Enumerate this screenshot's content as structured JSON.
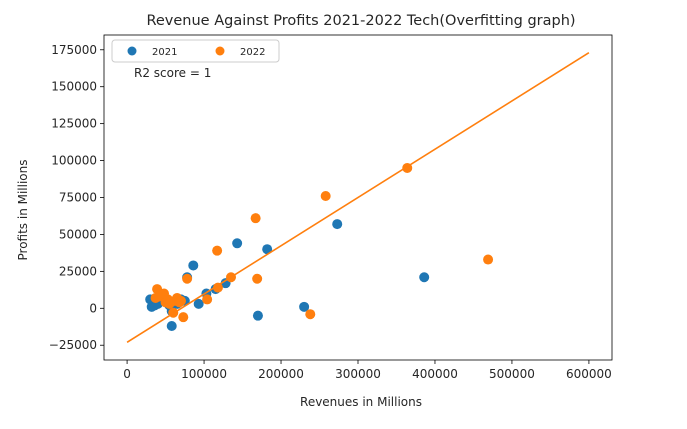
{
  "chart_data": {
    "type": "scatter",
    "title": "Revenue Against Profits 2021-2022 Tech(Overfitting graph)",
    "xlabel": "Revenues in Millions",
    "ylabel": "Profits in Millions",
    "xlim": [
      -30000,
      630000
    ],
    "ylim": [
      -35000,
      185000
    ],
    "xticks": [
      0,
      100000,
      200000,
      300000,
      400000,
      500000,
      600000
    ],
    "yticks": [
      -25000,
      0,
      25000,
      50000,
      75000,
      100000,
      125000,
      150000,
      175000
    ],
    "xtick_labels": [
      "0",
      "100000",
      "200000",
      "300000",
      "400000",
      "500000",
      "600000"
    ],
    "ytick_labels": [
      "−25000",
      "0",
      "25000",
      "50000",
      "75000",
      "100000",
      "125000",
      "150000",
      "175000"
    ],
    "grid": false,
    "legend_position": "top-left",
    "annotation": "R2 score = 1",
    "series": [
      {
        "name": "2021",
        "color": "#1f77b4",
        "points": [
          [
            30000,
            6000
          ],
          [
            32000,
            1000
          ],
          [
            36000,
            2000
          ],
          [
            40000,
            3000
          ],
          [
            45000,
            7000
          ],
          [
            50000,
            5000
          ],
          [
            55000,
            2000
          ],
          [
            58000,
            -2000
          ],
          [
            58000,
            -12000
          ],
          [
            62000,
            4000
          ],
          [
            65000,
            3000
          ],
          [
            70000,
            6000
          ],
          [
            75000,
            5000
          ],
          [
            78000,
            21000
          ],
          [
            86000,
            29000
          ],
          [
            93000,
            3000
          ],
          [
            103000,
            10000
          ],
          [
            115000,
            13000
          ],
          [
            128000,
            17000
          ],
          [
            143000,
            44000
          ],
          [
            170000,
            -5000
          ],
          [
            182000,
            40000
          ],
          [
            230000,
            1000
          ],
          [
            273000,
            57000
          ],
          [
            386000,
            21000
          ]
        ]
      },
      {
        "name": "2022",
        "color": "#ff7f0e",
        "points": [
          [
            37000,
            7000
          ],
          [
            39000,
            13000
          ],
          [
            42000,
            8000
          ],
          [
            45000,
            9000
          ],
          [
            48000,
            10000
          ],
          [
            50000,
            4000
          ],
          [
            53000,
            6000
          ],
          [
            55000,
            3000
          ],
          [
            60000,
            -3000
          ],
          [
            62000,
            5000
          ],
          [
            65000,
            7000
          ],
          [
            68000,
            4000
          ],
          [
            70000,
            5000
          ],
          [
            73000,
            -6000
          ],
          [
            78000,
            20000
          ],
          [
            104000,
            6000
          ],
          [
            117000,
            39000
          ],
          [
            118000,
            14000
          ],
          [
            135000,
            21000
          ],
          [
            167000,
            61000
          ],
          [
            169000,
            20000
          ],
          [
            238000,
            -4000
          ],
          [
            258000,
            76000
          ],
          [
            364000,
            95000
          ],
          [
            469000,
            33000
          ]
        ]
      }
    ],
    "fit_line": {
      "color": "#ff7f0e",
      "x": [
        0,
        600000
      ],
      "y": [
        -23000,
        173000
      ]
    }
  }
}
